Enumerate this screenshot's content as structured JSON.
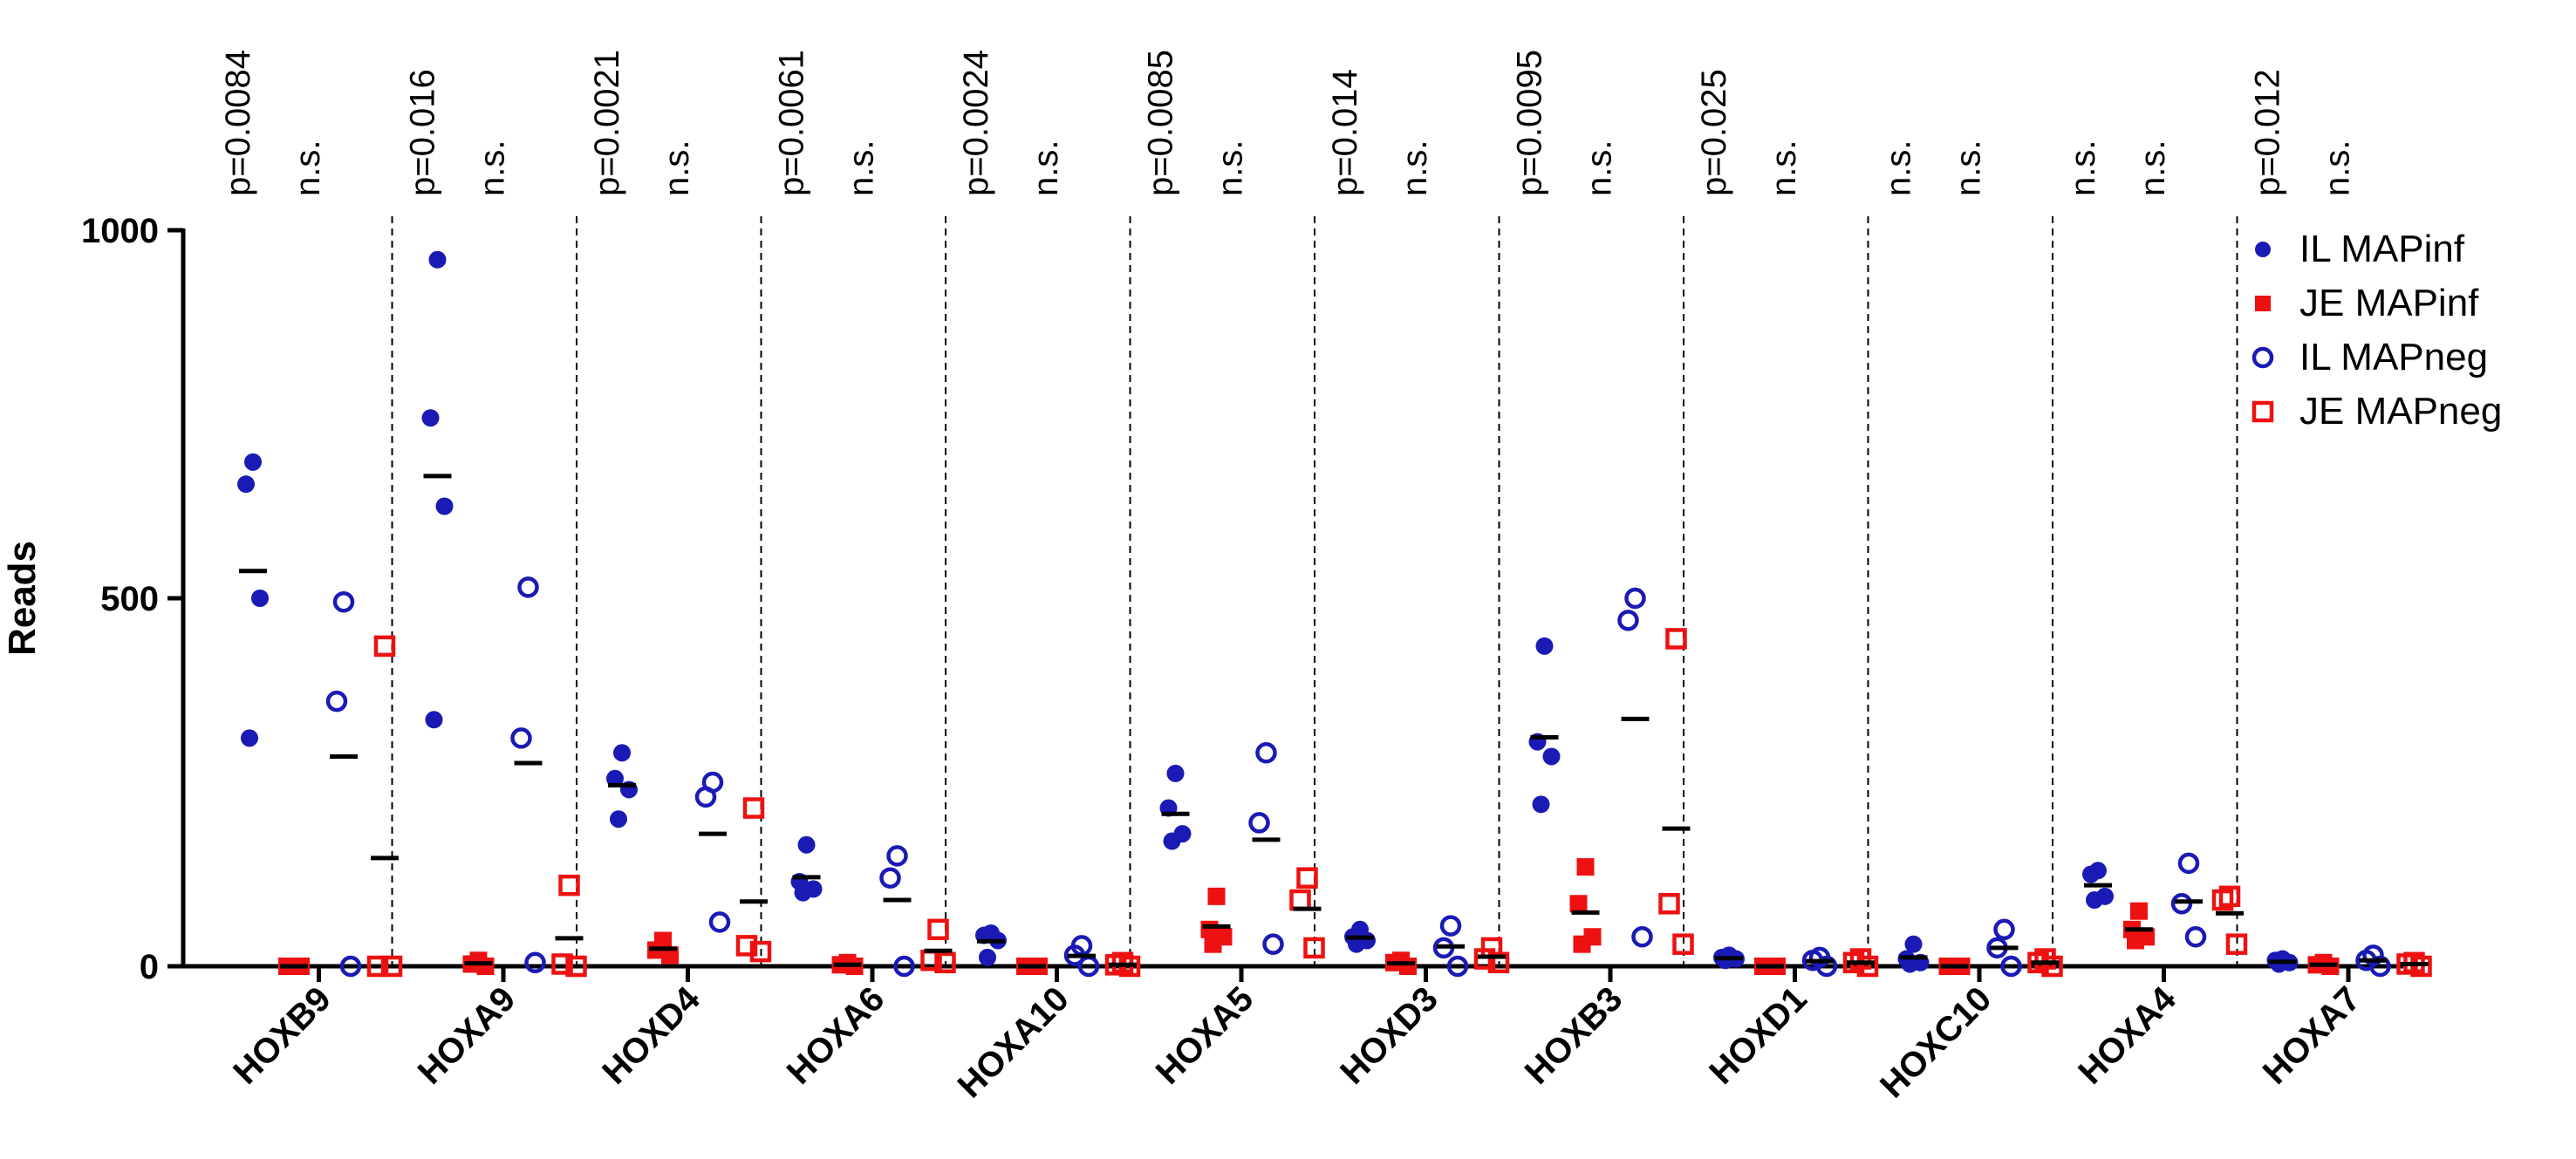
{
  "chart_data": {
    "type": "scatter",
    "ylabel": "Reads",
    "ylim": [
      0,
      1000
    ],
    "yticks": [
      0,
      500,
      1000
    ],
    "colors": {
      "IL": "#1a1ab5",
      "JE": "#ee1111",
      "mean": "#000000"
    },
    "series_order": [
      "IL MAPinf",
      "JE MAPinf",
      "IL MAPneg",
      "JE MAPneg"
    ],
    "legend": [
      {
        "label": "IL MAPinf",
        "marker": "filled-circle",
        "color": "#1a1ab5"
      },
      {
        "label": "JE MAPinf",
        "marker": "filled-square",
        "color": "#ee1111"
      },
      {
        "label": "IL MAPneg",
        "marker": "open-circle",
        "color": "#1a1ab5"
      },
      {
        "label": "JE MAPneg",
        "marker": "open-square",
        "color": "#ee1111"
      }
    ],
    "genes": [
      {
        "name": "HOXB9",
        "p_inf": "p=0.0084",
        "p_neg": "n.s.",
        "values": [
          [
            685,
            655,
            500,
            310
          ],
          [
            0,
            0,
            0
          ],
          [
            495,
            360,
            0
          ],
          [
            435,
            0,
            0
          ]
        ],
        "means": [
          537,
          0,
          285,
          147
        ]
      },
      {
        "name": "HOXA9",
        "p_inf": "p=0.016",
        "p_neg": "n.s.",
        "values": [
          [
            960,
            745,
            625,
            335
          ],
          [
            8,
            3,
            0
          ],
          [
            515,
            310,
            5
          ],
          [
            110,
            3,
            0
          ]
        ],
        "means": [
          666,
          4,
          276,
          38
        ]
      },
      {
        "name": "HOXD4",
        "p_inf": "p=0.0021",
        "p_neg": "n.s.",
        "values": [
          [
            290,
            255,
            240,
            200
          ],
          [
            35,
            22,
            15
          ],
          [
            250,
            230,
            60
          ],
          [
            215,
            28,
            20
          ]
        ],
        "means": [
          246,
          24,
          180,
          88
        ]
      },
      {
        "name": "HOXA6",
        "p_inf": "p=0.0061",
        "p_neg": "n.s.",
        "values": [
          [
            165,
            115,
            105,
            100
          ],
          [
            5,
            2,
            0
          ],
          [
            150,
            120,
            0
          ],
          [
            50,
            8,
            5
          ]
        ],
        "means": [
          121,
          2,
          90,
          21
        ]
      },
      {
        "name": "HOXA10",
        "p_inf": "p=0.0024",
        "p_neg": "n.s.",
        "values": [
          [
            45,
            42,
            35,
            12
          ],
          [
            0,
            0,
            0
          ],
          [
            28,
            15,
            0
          ],
          [
            5,
            2,
            0
          ]
        ],
        "means": [
          34,
          0,
          14,
          2
        ]
      },
      {
        "name": "HOXA5",
        "p_inf": "p=0.0085",
        "p_neg": "n.s.",
        "values": [
          [
            262,
            215,
            180,
            170
          ],
          [
            95,
            50,
            40,
            30
          ],
          [
            290,
            195,
            30
          ],
          [
            120,
            90,
            25
          ]
        ],
        "means": [
          207,
          54,
          172,
          78
        ]
      },
      {
        "name": "HOXD3",
        "p_inf": "p=0.014",
        "p_neg": "n.s.",
        "values": [
          [
            50,
            40,
            35,
            30
          ],
          [
            8,
            5,
            0
          ],
          [
            55,
            25,
            0
          ],
          [
            25,
            10,
            5
          ]
        ],
        "means": [
          39,
          4,
          27,
          13
        ]
      },
      {
        "name": "HOXB3",
        "p_inf": "p=0.0095",
        "p_neg": "n.s.",
        "values": [
          [
            435,
            305,
            285,
            220
          ],
          [
            135,
            85,
            40,
            30
          ],
          [
            500,
            470,
            40
          ],
          [
            445,
            85,
            30
          ]
        ],
        "means": [
          311,
          73,
          336,
          187
        ]
      },
      {
        "name": "HOXD1",
        "p_inf": "p=0.025",
        "p_neg": "n.s.",
        "values": [
          [
            15,
            12,
            10,
            8
          ],
          [
            0,
            0,
            0
          ],
          [
            12,
            8,
            0
          ],
          [
            10,
            5,
            0
          ]
        ],
        "means": [
          11,
          0,
          7,
          5
        ]
      },
      {
        "name": "HOXC10",
        "p_inf": "n.s.",
        "p_neg": "n.s.",
        "values": [
          [
            30,
            10,
            5,
            3
          ],
          [
            0,
            0,
            0
          ],
          [
            50,
            25,
            0
          ],
          [
            10,
            5,
            0
          ]
        ],
        "means": [
          12,
          0,
          25,
          5
        ]
      },
      {
        "name": "HOXA4",
        "p_inf": "n.s.",
        "p_neg": "n.s.",
        "values": [
          [
            130,
            125,
            95,
            90
          ],
          [
            75,
            50,
            40,
            35
          ],
          [
            140,
            85,
            40
          ],
          [
            95,
            90,
            30
          ]
        ],
        "means": [
          110,
          50,
          88,
          72
        ]
      },
      {
        "name": "HOXA7",
        "p_inf": "p=0.012",
        "p_neg": "n.s.",
        "values": [
          [
            10,
            8,
            5,
            3
          ],
          [
            5,
            2,
            0
          ],
          [
            15,
            8,
            0
          ],
          [
            5,
            3,
            0
          ]
        ],
        "means": [
          6,
          2,
          8,
          3
        ]
      }
    ]
  }
}
